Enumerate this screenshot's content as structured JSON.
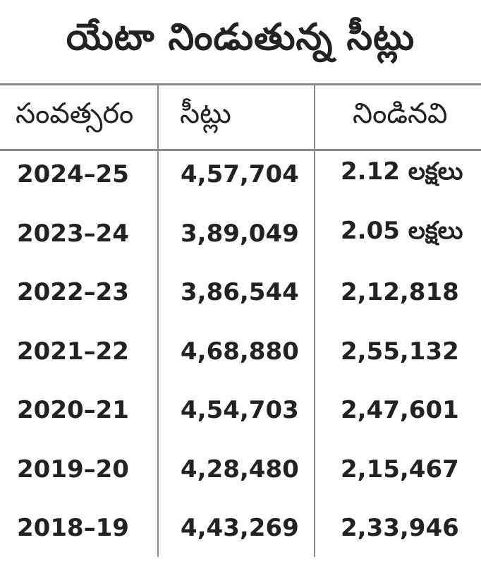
{
  "title": "యేటా నిండుతున్న సీట్లు",
  "table": {
    "headers": [
      "సంవత్సరం",
      "సీట్లు",
      "నిండినవి"
    ],
    "rows": [
      [
        "2024–25",
        "4,57,704",
        "2.12 లక్షలు"
      ],
      [
        "2023–24",
        "3,89,049",
        "2.05 లక్షలు"
      ],
      [
        "2022–23",
        "3,86,544",
        "2,12,818"
      ],
      [
        "2021–22",
        "4,68,880",
        "2,55,132"
      ],
      [
        "2020–21",
        "4,54,703",
        "2,47,601"
      ],
      [
        "2019–20",
        "4,28,480",
        "2,15,467"
      ],
      [
        "2018–19",
        "4,43,269",
        "2,33,946"
      ]
    ]
  },
  "colors": {
    "text": "#222222",
    "rule": "#8a8a8a",
    "background": "#ffffff"
  }
}
